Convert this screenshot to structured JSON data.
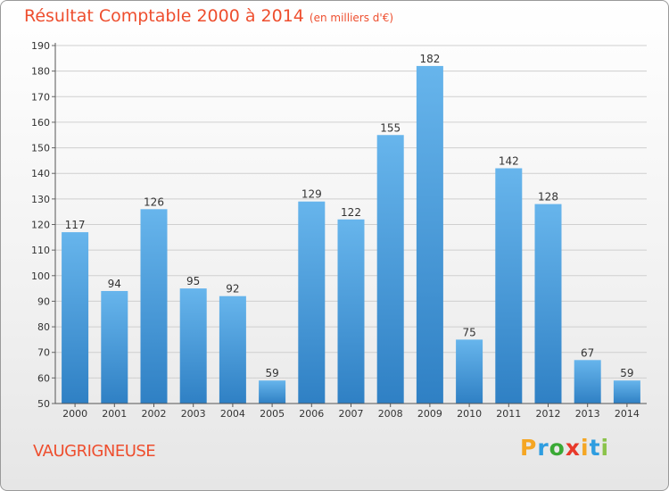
{
  "title": "Résultat Comptable 2000 à 2014",
  "subtitle": "(en milliers d'€)",
  "commune": "VAUGRIGNEUSE",
  "logo": {
    "letters": [
      "P",
      "r",
      "o",
      "x",
      "i",
      "t",
      "i"
    ],
    "colors": [
      "#f5a623",
      "#2e9de0",
      "#3aa935",
      "#e8392a",
      "#f5a623",
      "#2e9de0",
      "#8bc34a"
    ]
  },
  "colors": {
    "bar_top": "#67b5ec",
    "bar_bottom": "#2f80c4",
    "title": "#ee4e2e"
  },
  "chart_data": {
    "type": "bar",
    "title": "Résultat Comptable 2000 à 2014",
    "ylabel": "(en milliers d'€)",
    "xlabel": "",
    "categories": [
      "2000",
      "2001",
      "2002",
      "2003",
      "2004",
      "2005",
      "2006",
      "2007",
      "2008",
      "2009",
      "2010",
      "2011",
      "2012",
      "2013",
      "2014"
    ],
    "values": [
      117,
      94,
      126,
      95,
      92,
      59,
      129,
      122,
      155,
      182,
      75,
      142,
      128,
      67,
      59
    ],
    "ylim": [
      50,
      190
    ],
    "yticks": [
      50,
      60,
      70,
      80,
      90,
      100,
      110,
      120,
      130,
      140,
      150,
      160,
      170,
      180,
      190
    ],
    "grid": true
  }
}
